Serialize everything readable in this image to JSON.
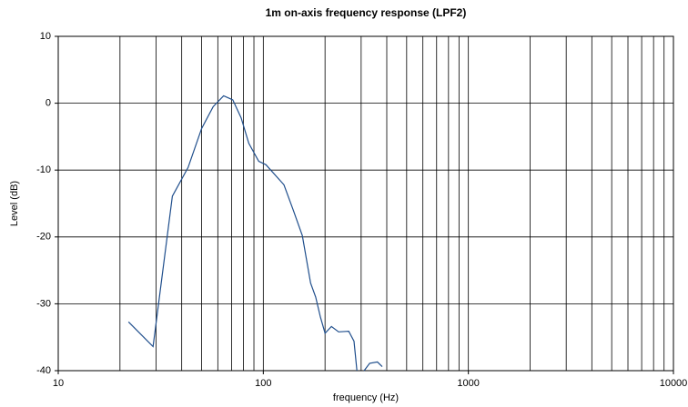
{
  "chart_data": {
    "type": "line",
    "title": "1m on-axis frequency response (LPF2)",
    "xlabel": "frequency (Hz)",
    "ylabel": "Level (dB)",
    "xscale": "log",
    "grid": true,
    "xlim": [
      10,
      10000
    ],
    "ylim": [
      -40,
      10
    ],
    "xticks": [
      10,
      100,
      1000,
      10000
    ],
    "xminor_ticks": [
      20,
      30,
      40,
      50,
      60,
      70,
      80,
      90,
      200,
      300,
      400,
      500,
      600,
      700,
      800,
      900,
      2000,
      3000,
      4000,
      5000,
      6000,
      7000,
      8000,
      9000
    ],
    "yticks": [
      -40,
      -30,
      -20,
      -10,
      0,
      10
    ],
    "x": [
      22,
      29,
      36,
      43,
      50,
      57,
      64,
      71,
      78,
      85,
      95,
      103,
      126,
      140,
      155,
      170,
      180,
      190,
      200,
      215,
      233,
      261,
      277,
      286,
      298,
      310,
      330,
      360,
      380
    ],
    "series": [
      {
        "name": "LPF2",
        "color": "#1f4e8c",
        "values": [
          -32.7,
          -36.4,
          -13.9,
          -9.6,
          -3.8,
          -0.5,
          1.1,
          0.5,
          -2.2,
          -6,
          -8.7,
          -9.2,
          -12.2,
          -16,
          -19.8,
          -26.9,
          -29,
          -32,
          -34.4,
          -33.4,
          -34.2,
          -34.1,
          -35.6,
          -40,
          null,
          -40,
          -38.9,
          -38.7,
          -39.4
        ]
      }
    ]
  }
}
